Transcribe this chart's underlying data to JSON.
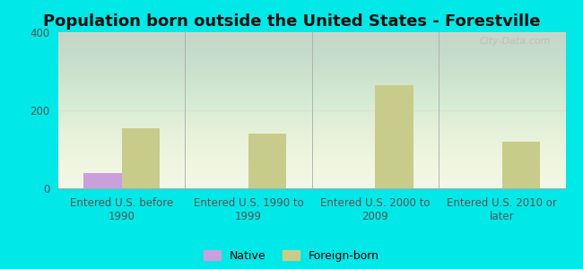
{
  "title": "Population born outside the United States - Forestville",
  "categories": [
    "Entered U.S. before\n1990",
    "Entered U.S. 1990 to\n1999",
    "Entered U.S. 2000 to\n2009",
    "Entered U.S. 2010 or\nlater"
  ],
  "native_values": [
    40,
    0,
    0,
    0
  ],
  "foreign_values": [
    155,
    140,
    265,
    120
  ],
  "native_color": "#c9a0dc",
  "foreign_color": "#c8cc8a",
  "plot_bg_top": "#f0f5e8",
  "plot_bg_bottom": "#e0f0e0",
  "outer_background": "#00e8e8",
  "ylim": [
    0,
    400
  ],
  "yticks": [
    0,
    200,
    400
  ],
  "bar_width": 0.3,
  "title_fontsize": 13,
  "tick_fontsize": 8.5,
  "legend_labels": [
    "Native",
    "Foreign-born"
  ],
  "watermark": "City-Data.com"
}
